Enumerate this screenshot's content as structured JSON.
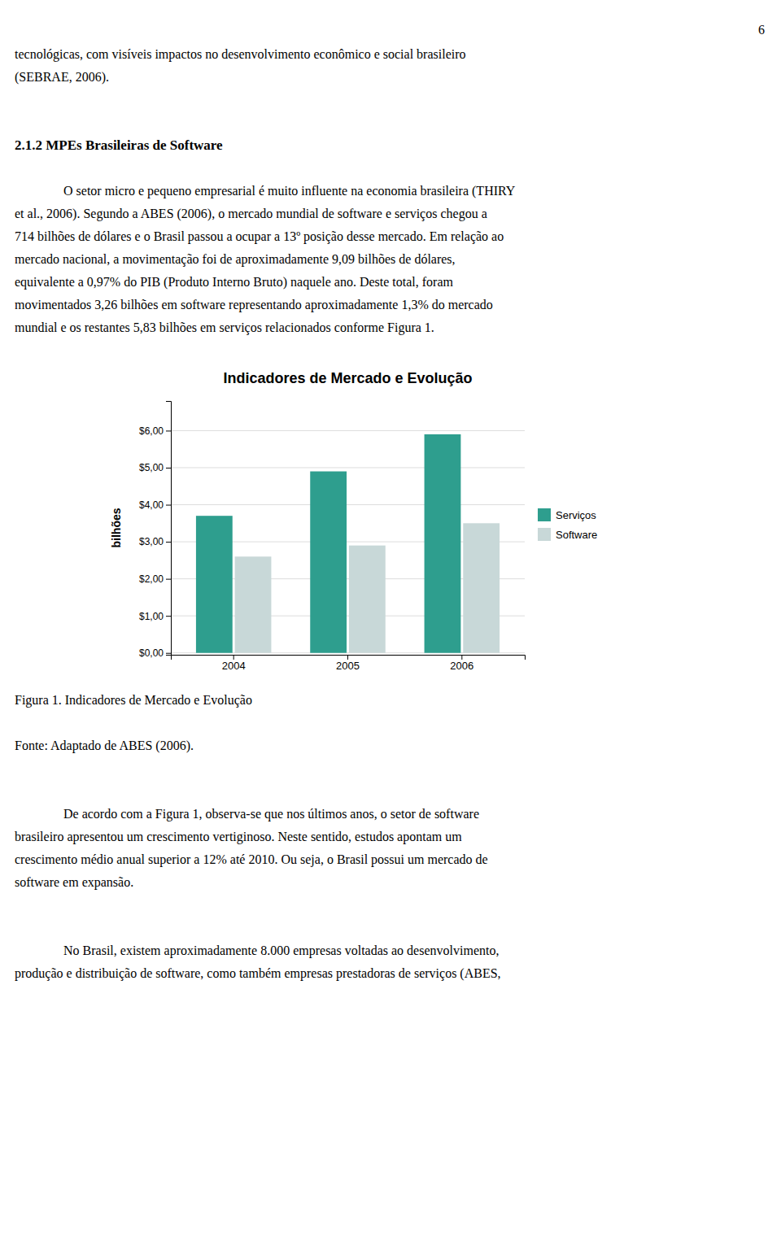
{
  "page_number": "6",
  "text_before": [
    "tecnológicas, com visíveis impactos no desenvolvimento econômico e social brasileiro",
    "(SEBRAE, 2006)."
  ],
  "heading": "2.1.2 MPEs Brasileiras de Software",
  "paragraphs_before": [
    [
      "O setor micro e pequeno empresarial é muito influente na economia brasileira (THIRY",
      "et al., 2006). Segundo a ABES (2006), o mercado mundial de software e serviços chegou a",
      "714 bilhões de dólares e o Brasil passou a ocupar a 13º posição desse mercado. Em relação ao",
      "mercado nacional, a movimentação foi de aproximadamente 9,09 bilhões de dólares,",
      "equivalente a 0,97% do PIB (Produto Interno Bruto) naquele ano. Deste total, foram",
      "movimentados 3,26 bilhões em software representando aproximadamente 1,3% do mercado",
      "mundial e os restantes 5,83 bilhões em serviços relacionados conforme Figura 1."
    ]
  ],
  "caption": "Figura 1. Indicadores de Mercado e Evolução",
  "source": "Fonte: Adaptado de ABES (2006).",
  "paragraphs_after": [
    [
      "De acordo com a Figura 1, observa-se que nos últimos anos, o setor de software",
      "brasileiro apresentou um crescimento vertiginoso. Neste sentido, estudos apontam um",
      "crescimento médio anual superior a 12% até 2010. Ou seja, o Brasil possui um mercado de",
      "software em expansão."
    ],
    [
      "No Brasil, existem aproximadamente 8.000 empresas voltadas ao desenvolvimento,",
      "produção e distribuição de software, como também empresas prestadoras de serviços (ABES,"
    ]
  ],
  "chart_data": {
    "type": "bar",
    "title": "Indicadores de Mercado e Evolução",
    "categories": [
      "2004",
      "2005",
      "2006"
    ],
    "series": [
      {
        "name": "Serviços",
        "color": "#2E9E8E",
        "values": [
          3.7,
          4.9,
          5.9
        ]
      },
      {
        "name": "Software",
        "color": "#C8D8D8",
        "values": [
          2.6,
          2.9,
          3.5
        ]
      }
    ],
    "y_label": "bilhões",
    "ylim": [
      -0.05,
      6.8
    ],
    "yticks": [
      {
        "value": 0.0,
        "label": "$0,00"
      },
      {
        "value": 1.0,
        "label": "$1,00"
      },
      {
        "value": 2.0,
        "label": "$2,00"
      },
      {
        "value": 3.0,
        "label": "$3,00"
      },
      {
        "value": 4.0,
        "label": "$4,00"
      },
      {
        "value": 5.0,
        "label": "$5,00"
      },
      {
        "value": 6.0,
        "label": "$6,00"
      }
    ],
    "grid": true,
    "legend": "right"
  }
}
